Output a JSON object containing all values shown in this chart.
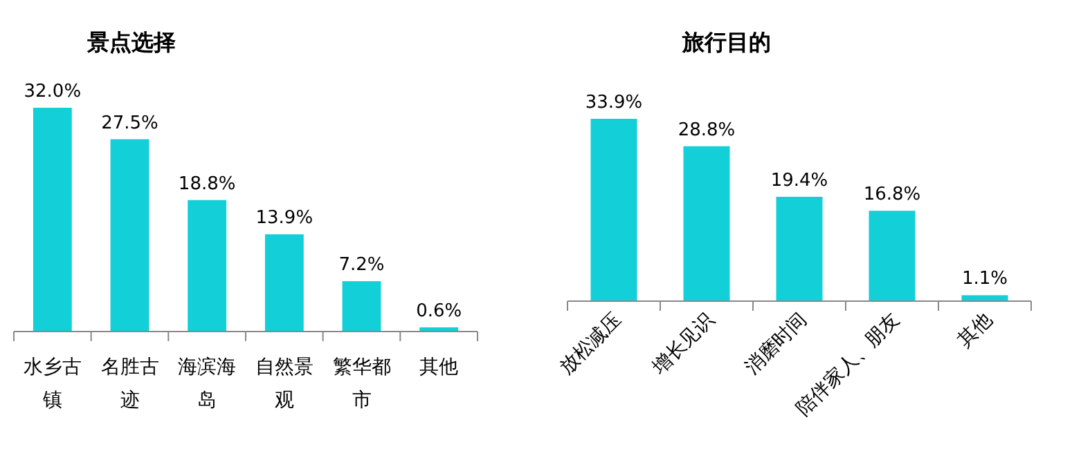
{
  "chart_data": [
    {
      "type": "bar",
      "title": "景点选择",
      "categories": [
        "水乡古镇",
        "名胜古迹",
        "海滨海岛",
        "自然景观",
        "繁华都市",
        "其他"
      ],
      "values": [
        32.0,
        27.5,
        18.8,
        13.9,
        7.2,
        0.6
      ],
      "value_labels": [
        "32.0%",
        "27.5%",
        "18.8%",
        "13.9%",
        "7.2%",
        "0.6%"
      ],
      "color": "#12cfd8"
    },
    {
      "type": "bar",
      "title": "旅行目的",
      "categories": [
        "放松减压",
        "增长见识",
        "消磨时间",
        "陪伴家人、朋友",
        "其他"
      ],
      "values": [
        33.9,
        28.8,
        19.4,
        16.8,
        1.1
      ],
      "value_labels": [
        "33.9%",
        "28.8%",
        "19.4%",
        "16.8%",
        "1.1%"
      ],
      "color": "#12cfd8"
    }
  ]
}
